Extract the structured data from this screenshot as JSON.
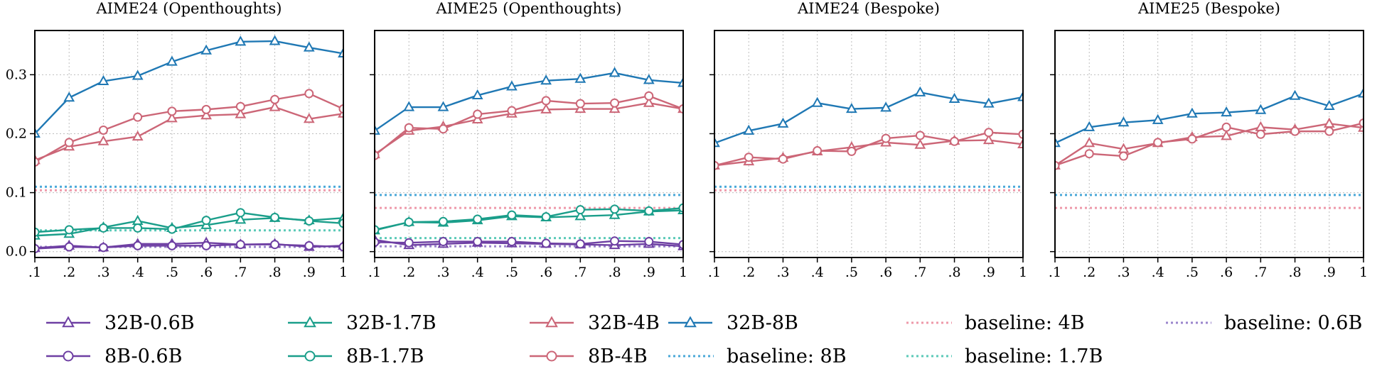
{
  "chart_data": {
    "type": "line",
    "ylim": [
      -0.01,
      0.375
    ],
    "yticks": [
      0.0,
      0.1,
      0.2,
      0.3
    ],
    "ytick_labels": [
      "0.0",
      "0.1",
      "0.2",
      "0.3"
    ],
    "xlim": [
      0.1,
      1.0
    ],
    "xticks": [
      0.1,
      0.2,
      0.3,
      0.4,
      0.5,
      0.6,
      0.7,
      0.8,
      0.9,
      1.0
    ],
    "xtick_labels": [
      ".1",
      ".2",
      ".3",
      ".4",
      ".5",
      ".6",
      ".7",
      ".8",
      ".9",
      "1"
    ],
    "grid": true,
    "legend_position": "bottom",
    "colors": {
      "0.6B": "#6e3fa3",
      "1.7B": "#1a9e8a",
      "4B": "#cc6677",
      "8B": "#1f78b4",
      "baseline_4B": "#ee99aa",
      "baseline_8B": "#4aa8d8",
      "baseline_1.7B": "#5ccab8",
      "baseline_0.6B": "#9b86cc"
    },
    "legend": [
      {
        "label": "32B-0.6B",
        "color_key": "0.6B",
        "style": "solid",
        "marker": "triangle"
      },
      {
        "label": "8B-0.6B",
        "color_key": "0.6B",
        "style": "solid",
        "marker": "circle"
      },
      {
        "label": "32B-1.7B",
        "color_key": "1.7B",
        "style": "solid",
        "marker": "triangle"
      },
      {
        "label": "8B-1.7B",
        "color_key": "1.7B",
        "style": "solid",
        "marker": "circle"
      },
      {
        "label": "32B-4B",
        "color_key": "4B",
        "style": "solid",
        "marker": "triangle"
      },
      {
        "label": "8B-4B",
        "color_key": "4B",
        "style": "solid",
        "marker": "circle"
      },
      {
        "label": "32B-8B",
        "color_key": "8B",
        "style": "solid",
        "marker": "triangle"
      },
      {
        "label": "baseline: 8B",
        "color_key": "baseline_8B",
        "style": "dotted",
        "marker": "none"
      },
      {
        "label": "baseline: 4B",
        "color_key": "baseline_4B",
        "style": "dotted",
        "marker": "none"
      },
      {
        "label": "baseline: 1.7B",
        "color_key": "baseline_1.7B",
        "style": "dotted",
        "marker": "none"
      },
      {
        "label": "baseline: 0.6B",
        "color_key": "baseline_0.6B",
        "style": "dotted",
        "marker": "none"
      }
    ],
    "panels": [
      {
        "title": "AIME24 (Openthoughts)",
        "x": [
          0.1,
          0.2,
          0.3,
          0.4,
          0.5,
          0.6,
          0.7,
          0.8,
          0.9,
          1.0
        ],
        "series": [
          {
            "name": "32B-8B",
            "color_key": "8B",
            "marker": "triangle",
            "values": [
              0.2,
              0.261,
              0.289,
              0.298,
              0.322,
              0.341,
              0.356,
              0.357,
              0.346,
              0.336
            ]
          },
          {
            "name": "32B-4B",
            "color_key": "4B",
            "marker": "triangle",
            "values": [
              0.155,
              0.178,
              0.187,
              0.195,
              0.226,
              0.231,
              0.233,
              0.245,
              0.225,
              0.234
            ]
          },
          {
            "name": "8B-4B",
            "color_key": "4B",
            "marker": "circle",
            "values": [
              0.152,
              0.185,
              0.206,
              0.228,
              0.238,
              0.241,
              0.246,
              0.258,
              0.268,
              0.242
            ]
          },
          {
            "name": "32B-1.7B",
            "color_key": "1.7B",
            "marker": "triangle",
            "values": [
              0.027,
              0.03,
              0.041,
              0.052,
              0.04,
              0.045,
              0.054,
              0.057,
              0.053,
              0.057
            ]
          },
          {
            "name": "8B-1.7B",
            "color_key": "1.7B",
            "marker": "circle",
            "values": [
              0.033,
              0.037,
              0.04,
              0.04,
              0.038,
              0.053,
              0.066,
              0.058,
              0.052,
              0.048
            ]
          },
          {
            "name": "32B-0.6B",
            "color_key": "0.6B",
            "marker": "triangle",
            "values": [
              0.006,
              0.01,
              0.007,
              0.013,
              0.013,
              0.015,
              0.012,
              0.013,
              0.008,
              0.01
            ]
          },
          {
            "name": "8B-0.6B",
            "color_key": "0.6B",
            "marker": "circle",
            "values": [
              0.005,
              0.008,
              0.007,
              0.01,
              0.01,
              0.01,
              0.012,
              0.012,
              0.01,
              0.008
            ]
          }
        ],
        "baselines": [
          {
            "name": "baseline: 8B",
            "color_key": "baseline_8B",
            "value": 0.11
          },
          {
            "name": "baseline: 4B",
            "color_key": "baseline_4B",
            "value": 0.104
          },
          {
            "name": "baseline: 1.7B",
            "color_key": "baseline_1.7B",
            "value": 0.036
          },
          {
            "name": "baseline: 0.6B",
            "color_key": "baseline_0.6B",
            "value": 0.008
          }
        ]
      },
      {
        "title": "AIME25 (Openthoughts)",
        "x": [
          0.1,
          0.2,
          0.3,
          0.4,
          0.5,
          0.6,
          0.7,
          0.8,
          0.9,
          1.0
        ],
        "series": [
          {
            "name": "32B-8B",
            "color_key": "8B",
            "marker": "triangle",
            "values": [
              0.205,
              0.245,
              0.245,
              0.265,
              0.28,
              0.29,
              0.293,
              0.303,
              0.291,
              0.286
            ]
          },
          {
            "name": "32B-4B",
            "color_key": "4B",
            "marker": "triangle",
            "values": [
              0.165,
              0.205,
              0.212,
              0.224,
              0.234,
              0.241,
              0.242,
              0.242,
              0.252,
              0.242
            ]
          },
          {
            "name": "8B-4B",
            "color_key": "4B",
            "marker": "circle",
            "values": [
              0.163,
              0.21,
              0.208,
              0.233,
              0.239,
              0.256,
              0.251,
              0.252,
              0.264,
              0.242
            ]
          },
          {
            "name": "32B-1.7B",
            "color_key": "1.7B",
            "marker": "triangle",
            "values": [
              0.036,
              0.05,
              0.049,
              0.053,
              0.06,
              0.058,
              0.06,
              0.062,
              0.068,
              0.07
            ]
          },
          {
            "name": "8B-1.7B",
            "color_key": "1.7B",
            "marker": "circle",
            "values": [
              0.037,
              0.05,
              0.051,
              0.055,
              0.062,
              0.059,
              0.071,
              0.072,
              0.069,
              0.074
            ]
          },
          {
            "name": "32B-0.6B",
            "color_key": "0.6B",
            "marker": "triangle",
            "values": [
              0.02,
              0.011,
              0.013,
              0.015,
              0.014,
              0.013,
              0.012,
              0.011,
              0.013,
              0.009
            ]
          },
          {
            "name": "8B-0.6B",
            "color_key": "0.6B",
            "marker": "circle",
            "values": [
              0.016,
              0.015,
              0.017,
              0.017,
              0.017,
              0.014,
              0.013,
              0.018,
              0.017,
              0.012
            ]
          }
        ],
        "baselines": [
          {
            "name": "baseline: 8B",
            "color_key": "baseline_8B",
            "value": 0.096
          },
          {
            "name": "baseline: 4B",
            "color_key": "baseline_4B",
            "value": 0.074
          },
          {
            "name": "baseline: 1.7B",
            "color_key": "baseline_1.7B",
            "value": 0.023
          },
          {
            "name": "baseline: 0.6B",
            "color_key": "baseline_0.6B",
            "value": 0.009
          }
        ]
      },
      {
        "title": "AIME24 (Bespoke)",
        "x": [
          0.1,
          0.2,
          0.3,
          0.4,
          0.5,
          0.6,
          0.7,
          0.8,
          0.9,
          1.0
        ],
        "series": [
          {
            "name": "32B-8B",
            "color_key": "8B",
            "marker": "triangle",
            "values": [
              0.184,
              0.205,
              0.217,
              0.252,
              0.242,
              0.244,
              0.27,
              0.259,
              0.251,
              0.262
            ]
          },
          {
            "name": "32B-4B",
            "color_key": "4B",
            "marker": "triangle",
            "values": [
              0.146,
              0.153,
              0.159,
              0.17,
              0.177,
              0.185,
              0.181,
              0.188,
              0.189,
              0.182
            ]
          },
          {
            "name": "8B-4B",
            "color_key": "4B",
            "marker": "circle",
            "values": [
              0.146,
              0.16,
              0.157,
              0.171,
              0.17,
              0.192,
              0.197,
              0.187,
              0.202,
              0.199
            ]
          }
        ],
        "baselines": [
          {
            "name": "baseline: 8B",
            "color_key": "baseline_8B",
            "value": 0.11
          },
          {
            "name": "baseline: 4B",
            "color_key": "baseline_4B",
            "value": 0.104
          }
        ]
      },
      {
        "title": "AIME25 (Bespoke)",
        "x": [
          0.1,
          0.2,
          0.3,
          0.4,
          0.5,
          0.6,
          0.7,
          0.8,
          0.9,
          1.0
        ],
        "series": [
          {
            "name": "32B-8B",
            "color_key": "8B",
            "marker": "triangle",
            "values": [
              0.184,
              0.211,
              0.219,
              0.223,
              0.234,
              0.236,
              0.24,
              0.264,
              0.247,
              0.268
            ]
          },
          {
            "name": "32B-4B",
            "color_key": "4B",
            "marker": "triangle",
            "values": [
              0.146,
              0.184,
              0.174,
              0.184,
              0.194,
              0.196,
              0.211,
              0.207,
              0.217,
              0.21
            ]
          },
          {
            "name": "8B-4B",
            "color_key": "4B",
            "marker": "circle",
            "values": [
              0.146,
              0.166,
              0.162,
              0.185,
              0.191,
              0.211,
              0.199,
              0.204,
              0.204,
              0.218
            ]
          }
        ],
        "baselines": [
          {
            "name": "baseline: 8B",
            "color_key": "baseline_8B",
            "value": 0.096
          },
          {
            "name": "baseline: 4B",
            "color_key": "baseline_4B",
            "value": 0.074
          }
        ]
      }
    ]
  }
}
